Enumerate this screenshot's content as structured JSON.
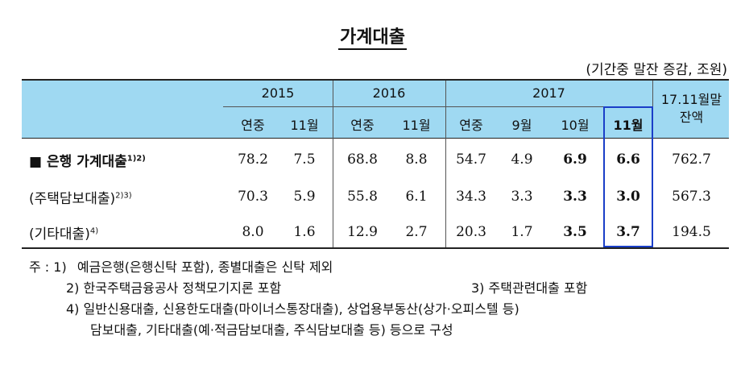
{
  "title": "가계대출",
  "unit_note": "(기간중 말잔 증감, 조원)",
  "header": {
    "years": [
      "2015",
      "2016",
      "2017"
    ],
    "periods": [
      "연중",
      "11월",
      "연중",
      "11월",
      "연중",
      "9월",
      "10월",
      "11월"
    ],
    "last_col": "17.11월말 잔액"
  },
  "rows": [
    {
      "marker": "■",
      "label": "은행 가계대출",
      "sup": "1)2)",
      "values": [
        "78.2",
        "7.5",
        "68.8",
        "8.8",
        "54.7",
        "4.9",
        "6.9",
        "6.6",
        "762.7"
      ]
    },
    {
      "marker": "",
      "label": "(주택담보대출)",
      "sup": "2)3)",
      "values": [
        "70.3",
        "5.9",
        "55.8",
        "6.1",
        "34.3",
        "3.3",
        "3.3",
        "3.0",
        "567.3"
      ]
    },
    {
      "marker": "",
      "label": "(기타대출)",
      "sup": "4)",
      "values": [
        "8.0",
        "1.6",
        "12.9",
        "2.7",
        "20.3",
        "1.7",
        "3.5",
        "3.7",
        "194.5"
      ]
    }
  ],
  "notes": {
    "prefix": "주 : 1)",
    "n1": "예금은행(은행신탁 포함), 종별대출은 신탁 제외",
    "n2": "2) 한국주택금융공사 정책모기지론 포함",
    "n3": "3) 주택관련대출 포함",
    "n4a": "4) 일반신용대출, 신용한도대출(마이너스통장대출), 상업용부동산(상가·오피스텔 등)",
    "n4b": "담보대출, 기타대출(예·적금담보대출, 주식담보대출 등) 등으로 구성"
  }
}
